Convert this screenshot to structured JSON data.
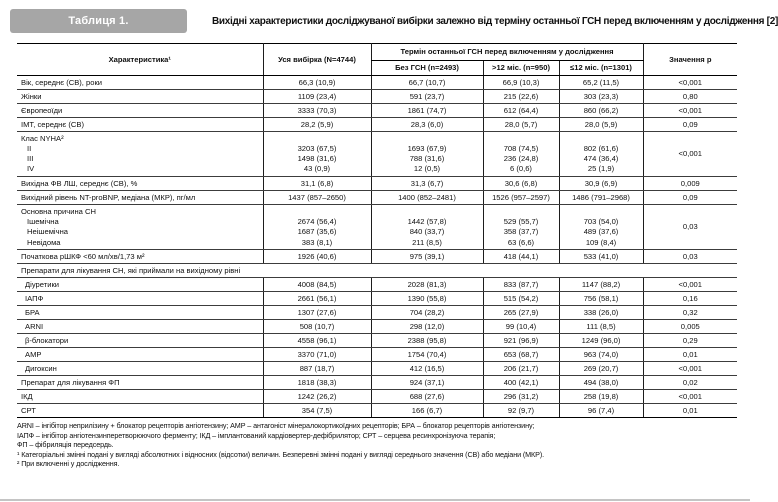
{
  "colors": {
    "label_badge_bg": "#a6a6a6",
    "text": "#101010",
    "bottom_rule": "#c4c4c4"
  },
  "caption": {
    "label": "Таблиця 1.",
    "title": "Вихідні характеристики досліджуваної вибірки залежно від терміну останньої ГСН перед включенням у дослідження [2]"
  },
  "table": {
    "header": {
      "characteristic": "Характеристика¹",
      "all_sample": "Уся вибірка (N=4744)",
      "group_title": "Термін останньої ГСН перед включенням у дослідження",
      "subcols": [
        "Без ГСН (n=2493)",
        ">12 міс. (n=950)",
        "≤12 міс. (n=1301)"
      ],
      "p_label": "Значення р"
    },
    "rows": [
      {
        "type": "simple",
        "label": "Вік, середнє (СВ), роки",
        "values": [
          "66,3 (10,9)",
          "66,7 (10,7)",
          "66,9 (10,3)",
          "65,2 (11,5)"
        ],
        "p": "<0,001"
      },
      {
        "type": "simple",
        "label": "Жінки",
        "values": [
          "1109 (23,4)",
          "591 (23,7)",
          "215 (22,6)",
          "303 (23,3)"
        ],
        "p": "0,80"
      },
      {
        "type": "simple",
        "label": "Європеоїди",
        "values": [
          "3333 (70,3)",
          "1861 (74,7)",
          "612 (64,4)",
          "860 (66,2)"
        ],
        "p": "<0,001"
      },
      {
        "type": "simple",
        "label": "ІМТ, середнє (СВ)",
        "values": [
          "28,2 (5,9)",
          "28,3 (6,0)",
          "28,0 (5,7)",
          "28,0 (5,9)"
        ],
        "p": "0,09"
      },
      {
        "type": "group",
        "label": "Клас NYHA²",
        "items": [
          {
            "label": "II",
            "values": [
              "3203 (67,5)",
              "1693 (67,9)",
              "708 (74,5)",
              "802 (61,6)"
            ]
          },
          {
            "label": "III",
            "values": [
              "1498 (31,6)",
              "788 (31,6)",
              "236 (24,8)",
              "474 (36,4)"
            ]
          },
          {
            "label": "IV",
            "values": [
              "43 (0,9)",
              "12 (0,5)",
              "6 (0,6)",
              "25 (1,9)"
            ]
          }
        ],
        "p": "<0,001"
      },
      {
        "type": "simple",
        "label": "Вихідна ФВ ЛШ, середнє (СВ), %",
        "values": [
          "31,1 (6,8)",
          "31,3 (6,7)",
          "30,6 (6,8)",
          "30,9 (6,9)"
        ],
        "p": "0,009"
      },
      {
        "type": "simple",
        "label": "Вихідний рівень NT-proBNP, медіана (МКР), пг/мл",
        "values": [
          "1437 (857–2650)",
          "1400 (852–2481)",
          "1526 (957–2597)",
          "1486 (791–2968)"
        ],
        "p": "0,09"
      },
      {
        "type": "group",
        "label": "Основна причина СН",
        "items": [
          {
            "label": "Ішемічна",
            "values": [
              "2674 (56,4)",
              "1442 (57,8)",
              "529 (55,7)",
              "703 (54,0)"
            ]
          },
          {
            "label": "Неішемічна",
            "values": [
              "1687 (35,6)",
              "840 (33,7)",
              "358 (37,7)",
              "489 (37,6)"
            ]
          },
          {
            "label": "Невідома",
            "values": [
              "383 (8,1)",
              "211 (8,5)",
              "63 (6,6)",
              "109 (8,4)"
            ]
          }
        ],
        "p": "0,03"
      },
      {
        "type": "simple",
        "label": "Початкова рШКФ <60 мл/хв/1,73 м²",
        "values": [
          "1926 (40,6)",
          "975 (39,1)",
          "418 (44,1)",
          "533 (41,0)"
        ],
        "p": "0,03"
      },
      {
        "type": "section",
        "label": "Препарати для лікування СН, які приймали на вихідному рівні"
      },
      {
        "type": "simple",
        "indent": true,
        "label": "Діуретики",
        "values": [
          "4008 (84,5)",
          "2028 (81,3)",
          "833 (87,7)",
          "1147 (88,2)"
        ],
        "p": "<0,001"
      },
      {
        "type": "simple",
        "indent": true,
        "label": "ІАПФ",
        "values": [
          "2661 (56,1)",
          "1390 (55,8)",
          "515 (54,2)",
          "756 (58,1)"
        ],
        "p": "0,16"
      },
      {
        "type": "simple",
        "indent": true,
        "label": "БРА",
        "values": [
          "1307 (27,6)",
          "704 (28,2)",
          "265 (27,9)",
          "338 (26,0)"
        ],
        "p": "0,32"
      },
      {
        "type": "simple",
        "indent": true,
        "label": "ARNI",
        "values": [
          "508 (10,7)",
          "298 (12,0)",
          "99 (10,4)",
          "111 (8,5)"
        ],
        "p": "0,005"
      },
      {
        "type": "simple",
        "indent": true,
        "label": "β-блокатори",
        "values": [
          "4558 (96,1)",
          "2388 (95,8)",
          "921 (96,9)",
          "1249 (96,0)"
        ],
        "p": "0,29"
      },
      {
        "type": "simple",
        "indent": true,
        "label": "АМР",
        "values": [
          "3370 (71,0)",
          "1754 (70,4)",
          "653 (68,7)",
          "963 (74,0)"
        ],
        "p": "0,01"
      },
      {
        "type": "simple",
        "indent": true,
        "label": "Дигоксин",
        "values": [
          "887 (18,7)",
          "412 (16,5)",
          "206 (21,7)",
          "269 (20,7)"
        ],
        "p": "<0,001"
      },
      {
        "type": "simple",
        "label": "Препарат для лікування ФП",
        "values": [
          "1818 (38,3)",
          "924 (37,1)",
          "400 (42,1)",
          "494 (38,0)"
        ],
        "p": "0,02"
      },
      {
        "type": "simple",
        "label": "ІКД",
        "values": [
          "1242 (26,2)",
          "688 (27,6)",
          "296 (31,2)",
          "258 (19,8)"
        ],
        "p": "<0,001"
      },
      {
        "type": "simple",
        "label": "СРТ",
        "values": [
          "354 (7,5)",
          "166 (6,7)",
          "92 (9,7)",
          "96 (7,4)"
        ],
        "p": "0,01"
      }
    ]
  },
  "footnotes": [
    "ARNI – інгібітор неприлізину + блокатор рецепторів ангіотензину; АМР – антагоніст мінералокортикоїдних рецепторів; БРА – блокатор рецепторів ангіотензину;",
    "ІАПФ – інгібітор ангіотензинперетворюючого ферменту; ІКД – імплантований кардіовертер-дефібрилятор; СРТ – серцева ресинхронізуюча терапія;",
    "ФП – фібриляція передсердь.",
    "¹ Категоріальні змінні подані у вигляді абсолютних і відносних (відсотки) величин. Безперевні змінні подані у вигляді середнього значення (СВ) або медіани (МКР).",
    "² При включенні у дослідження."
  ]
}
